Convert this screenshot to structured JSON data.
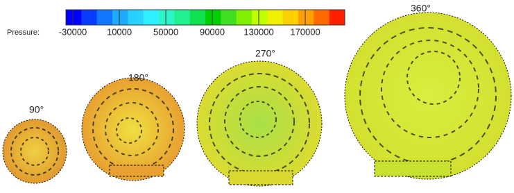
{
  "colorbar": {
    "label": "Pressure:",
    "lim": [
      -36000,
      204000
    ],
    "ticks": [
      -30000,
      10000,
      50000,
      90000,
      130000,
      170000
    ],
    "colors": [
      "#0000ff",
      "#0a3cff",
      "#1478ff",
      "#1eaaff",
      "#28d2ff",
      "#30f0ff",
      "#2cf5c8",
      "#20f090",
      "#10e050",
      "#00d000",
      "#40e020",
      "#80f000",
      "#c0ff00",
      "#f0f000",
      "#ffd000",
      "#ffa000",
      "#ff6a00",
      "#ff2000"
    ]
  },
  "panels": [
    {
      "label": "90°"
    },
    {
      "label": "180°"
    },
    {
      "label": "270°"
    },
    {
      "label": "360°"
    }
  ]
}
